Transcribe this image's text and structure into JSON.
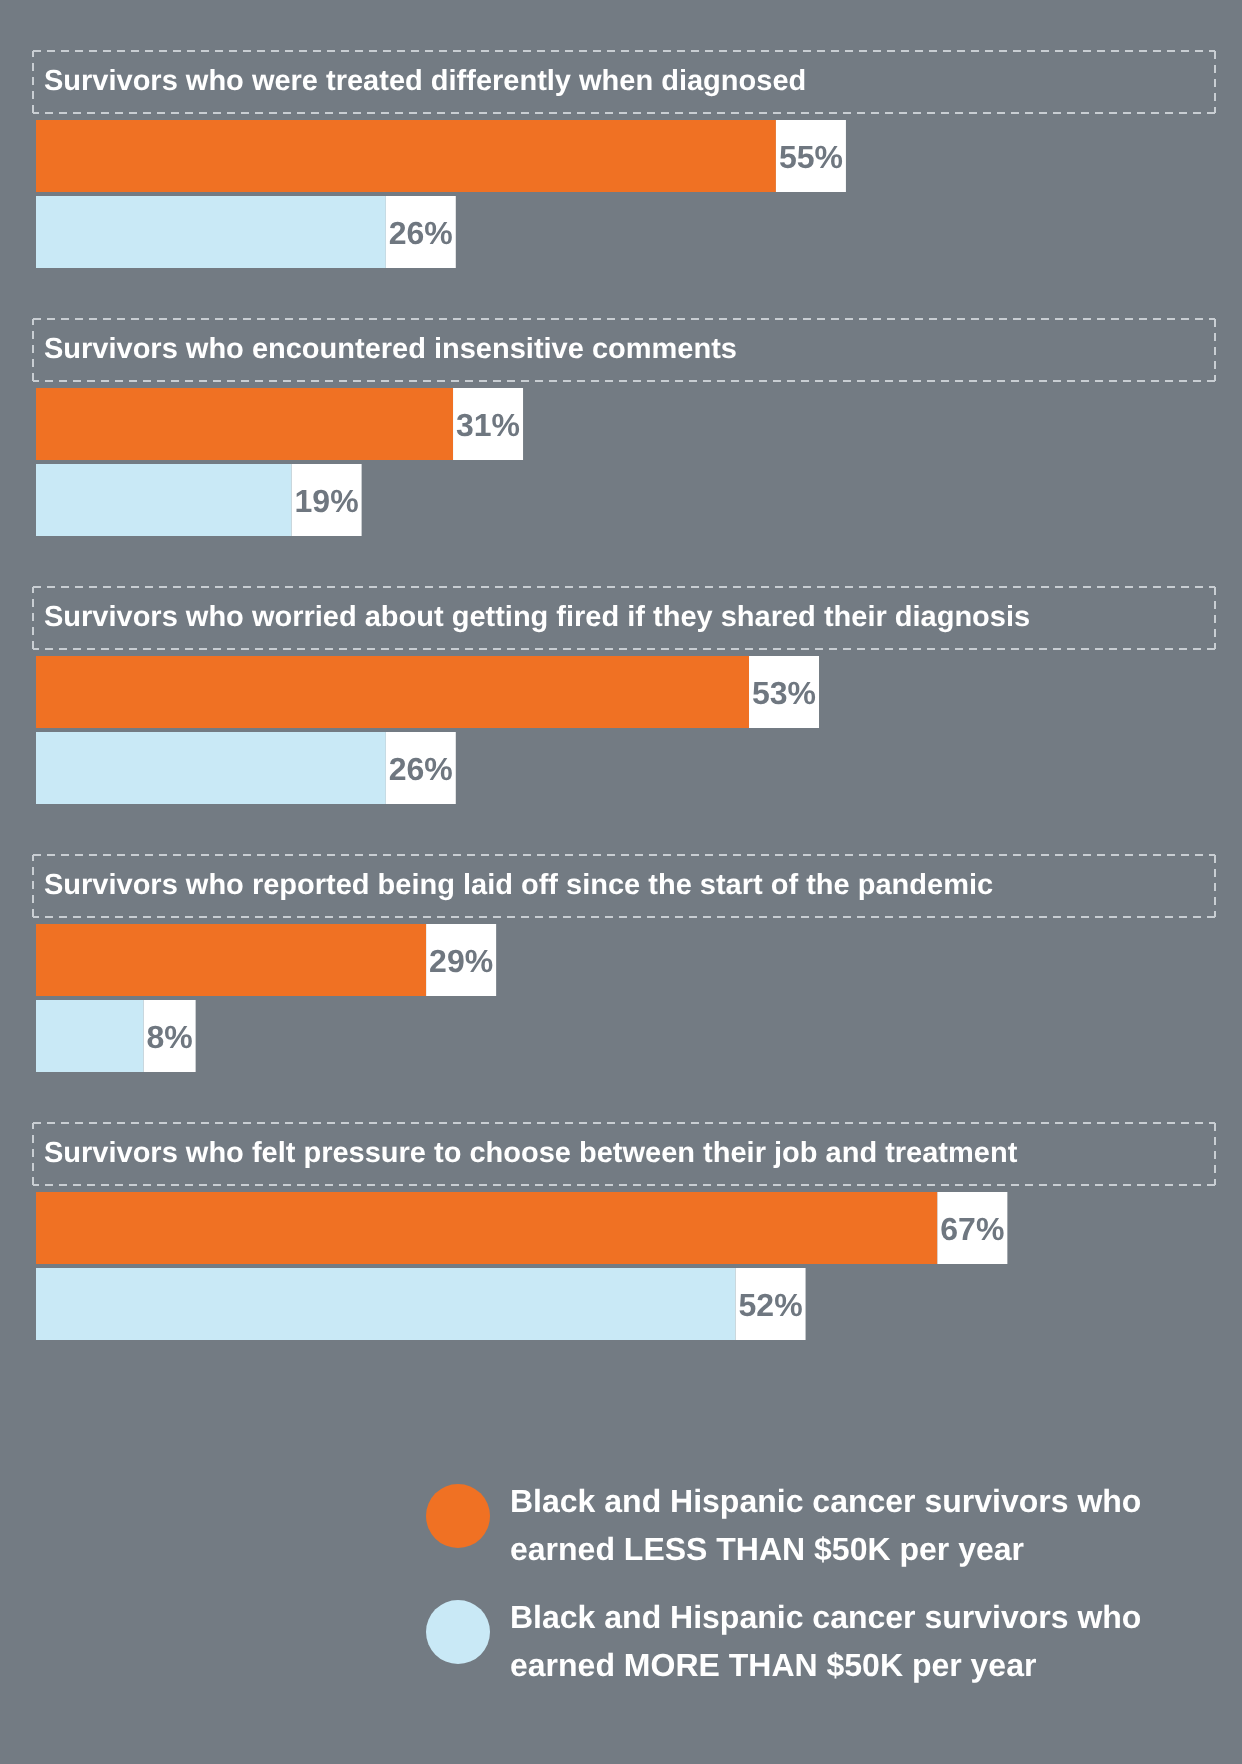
{
  "chart_data": {
    "type": "bar",
    "orientation": "horizontal",
    "categories": [
      "Survivors who were treated differently when diagnosed",
      "Survivors who encountered insensitive comments",
      "Survivors who worried about getting fired if they shared their diagnosis",
      "Survivors who reported being laid off since the start of the pandemic",
      "Survivors who felt pressure to choose between their job and treatment"
    ],
    "series": [
      {
        "name": "Black and Hispanic cancer survivors who earned LESS THAN $50K per year",
        "color": "#f07123",
        "values": [
          55,
          31,
          53,
          29,
          67
        ],
        "value_labels": [
          "55%",
          "31%",
          "53%",
          "29%",
          "67%"
        ]
      },
      {
        "name": "Black and Hispanic cancer survivors who earned MORE THAN $50K per year",
        "color": "#c9e9f6",
        "values": [
          26,
          19,
          26,
          8,
          52
        ],
        "value_labels": [
          "26%",
          "19%",
          "26%",
          "8%",
          "52%"
        ]
      }
    ],
    "legend": "bottom right",
    "grid": false
  }
}
